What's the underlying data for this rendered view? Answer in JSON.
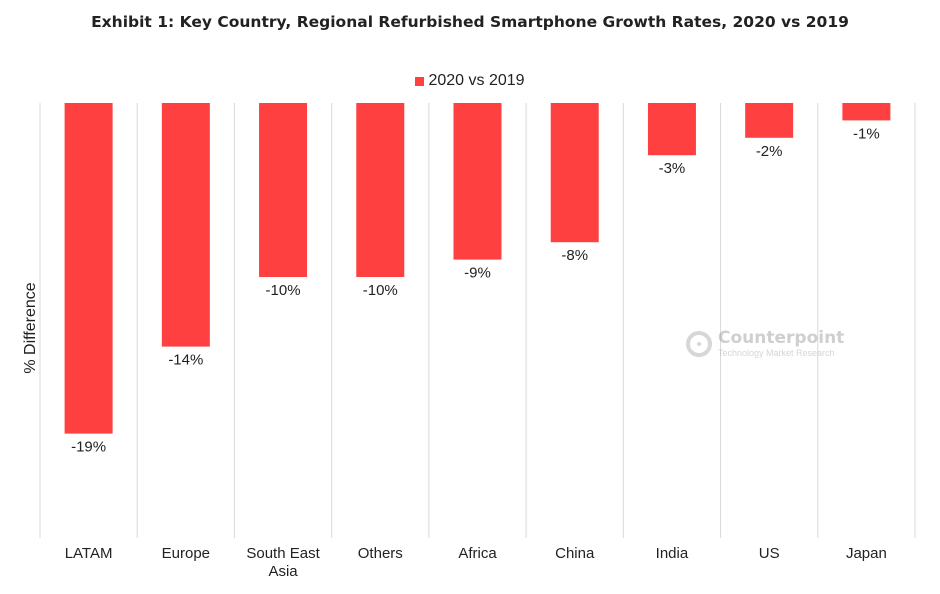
{
  "title": "Exhibit 1: Key Country, Regional Refurbished Smartphone Growth Rates, 2020 vs 2019",
  "watermark": {
    "name": "Counterpoint",
    "subtitle": "Technology Market Research"
  },
  "colors": {
    "bar": "#ff4040",
    "grid": "#d9d9d9",
    "text": "#222222"
  },
  "chart_data": {
    "type": "bar",
    "title": "",
    "xlabel": "",
    "ylabel": "% Difference",
    "categories": [
      "LATAM",
      "Europe",
      "South East Asia",
      "Others",
      "Africa",
      "China",
      "India",
      "US",
      "Japan"
    ],
    "category_lines": [
      [
        "LATAM"
      ],
      [
        "Europe"
      ],
      [
        "South East",
        "Asia"
      ],
      [
        "Others"
      ],
      [
        "Africa"
      ],
      [
        "China"
      ],
      [
        "India"
      ],
      [
        "US"
      ],
      [
        "Japan"
      ]
    ],
    "series": [
      {
        "name": "2020 vs 2019",
        "values": [
          -19,
          -14,
          -10,
          -10,
          -9,
          -8,
          -3,
          -2,
          -1
        ],
        "labels": [
          "-19%",
          "-14%",
          "-10%",
          "-10%",
          "-9%",
          "-8%",
          "-3%",
          "-2%",
          "-1%"
        ]
      }
    ],
    "ylim": [
      -25,
      0
    ],
    "legend_position": "top-center",
    "grid": "vertical separators between categories"
  }
}
